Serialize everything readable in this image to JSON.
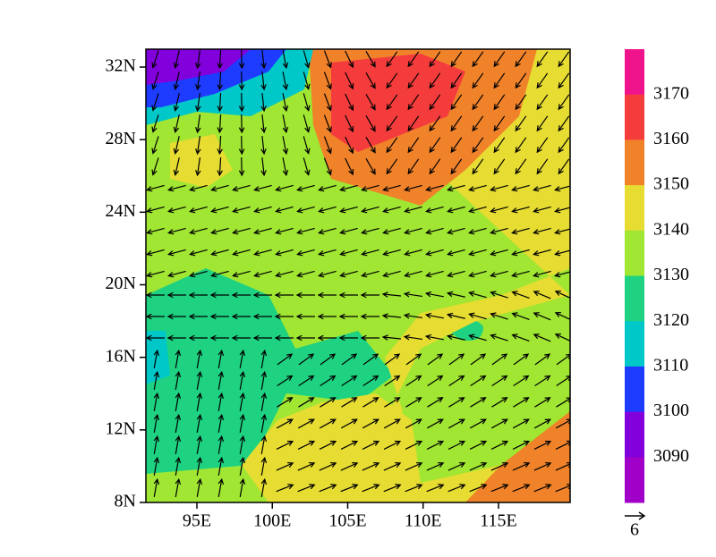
{
  "map": {
    "lat_labels": [
      "32N",
      "28N",
      "24N",
      "20N",
      "16N",
      "12N",
      "8N"
    ],
    "lon_labels": [
      "95E",
      "100E",
      "105E",
      "110E",
      "115E"
    ]
  },
  "colorbar": {
    "labels": [
      3170,
      3160,
      3150,
      3140,
      3130,
      3120,
      3110,
      3100,
      3090
    ],
    "colors": [
      "#f0148c",
      "#f53c3c",
      "#f0822a",
      "#e6dc32",
      "#a0e632",
      "#1ed282",
      "#00c8c8",
      "#1e3cff",
      "#8200dc",
      "#a000c8"
    ]
  },
  "reference_vector": {
    "label": "6"
  }
}
